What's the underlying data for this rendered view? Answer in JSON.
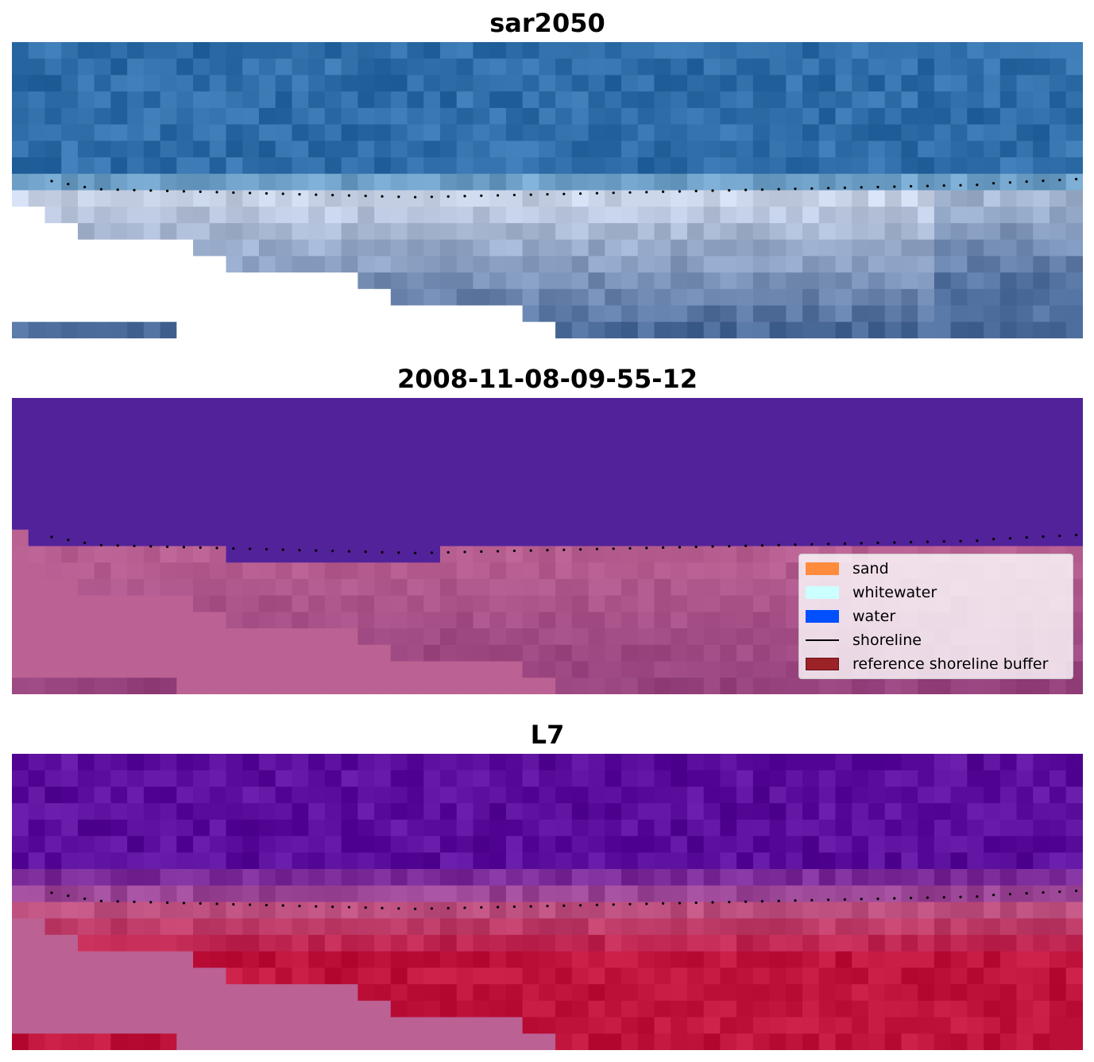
{
  "panels": [
    {
      "title": "sar2050",
      "mode": "rgb"
    },
    {
      "title": "2008-11-08-09-55-12",
      "mode": "classified"
    },
    {
      "title": "L7",
      "mode": "index"
    }
  ],
  "legend": {
    "items": [
      {
        "label": "sand",
        "color": "#ff8c3c",
        "kind": "patch"
      },
      {
        "label": "whitewater",
        "color": "#ccffff",
        "kind": "patch"
      },
      {
        "label": "water",
        "color": "#0050ff",
        "kind": "patch"
      },
      {
        "label": "shoreline",
        "color": "#000000",
        "kind": "line"
      },
      {
        "label": "reference shoreline buffer",
        "color": "#9b2226",
        "kind": "patch"
      }
    ]
  },
  "colors": {
    "rgb_sea": "#2f6ea8",
    "rgb_surf": "#c8d2e6",
    "rgb_deep": "#4a6a9a",
    "class_water": "#52229a",
    "class_land": "#bb6193",
    "class_land_dark": "#8c3a78",
    "index_low": "#5b0e9c",
    "index_mid": "#bb6193",
    "index_high": "#c0143c",
    "shoreline": "#000000"
  }
}
